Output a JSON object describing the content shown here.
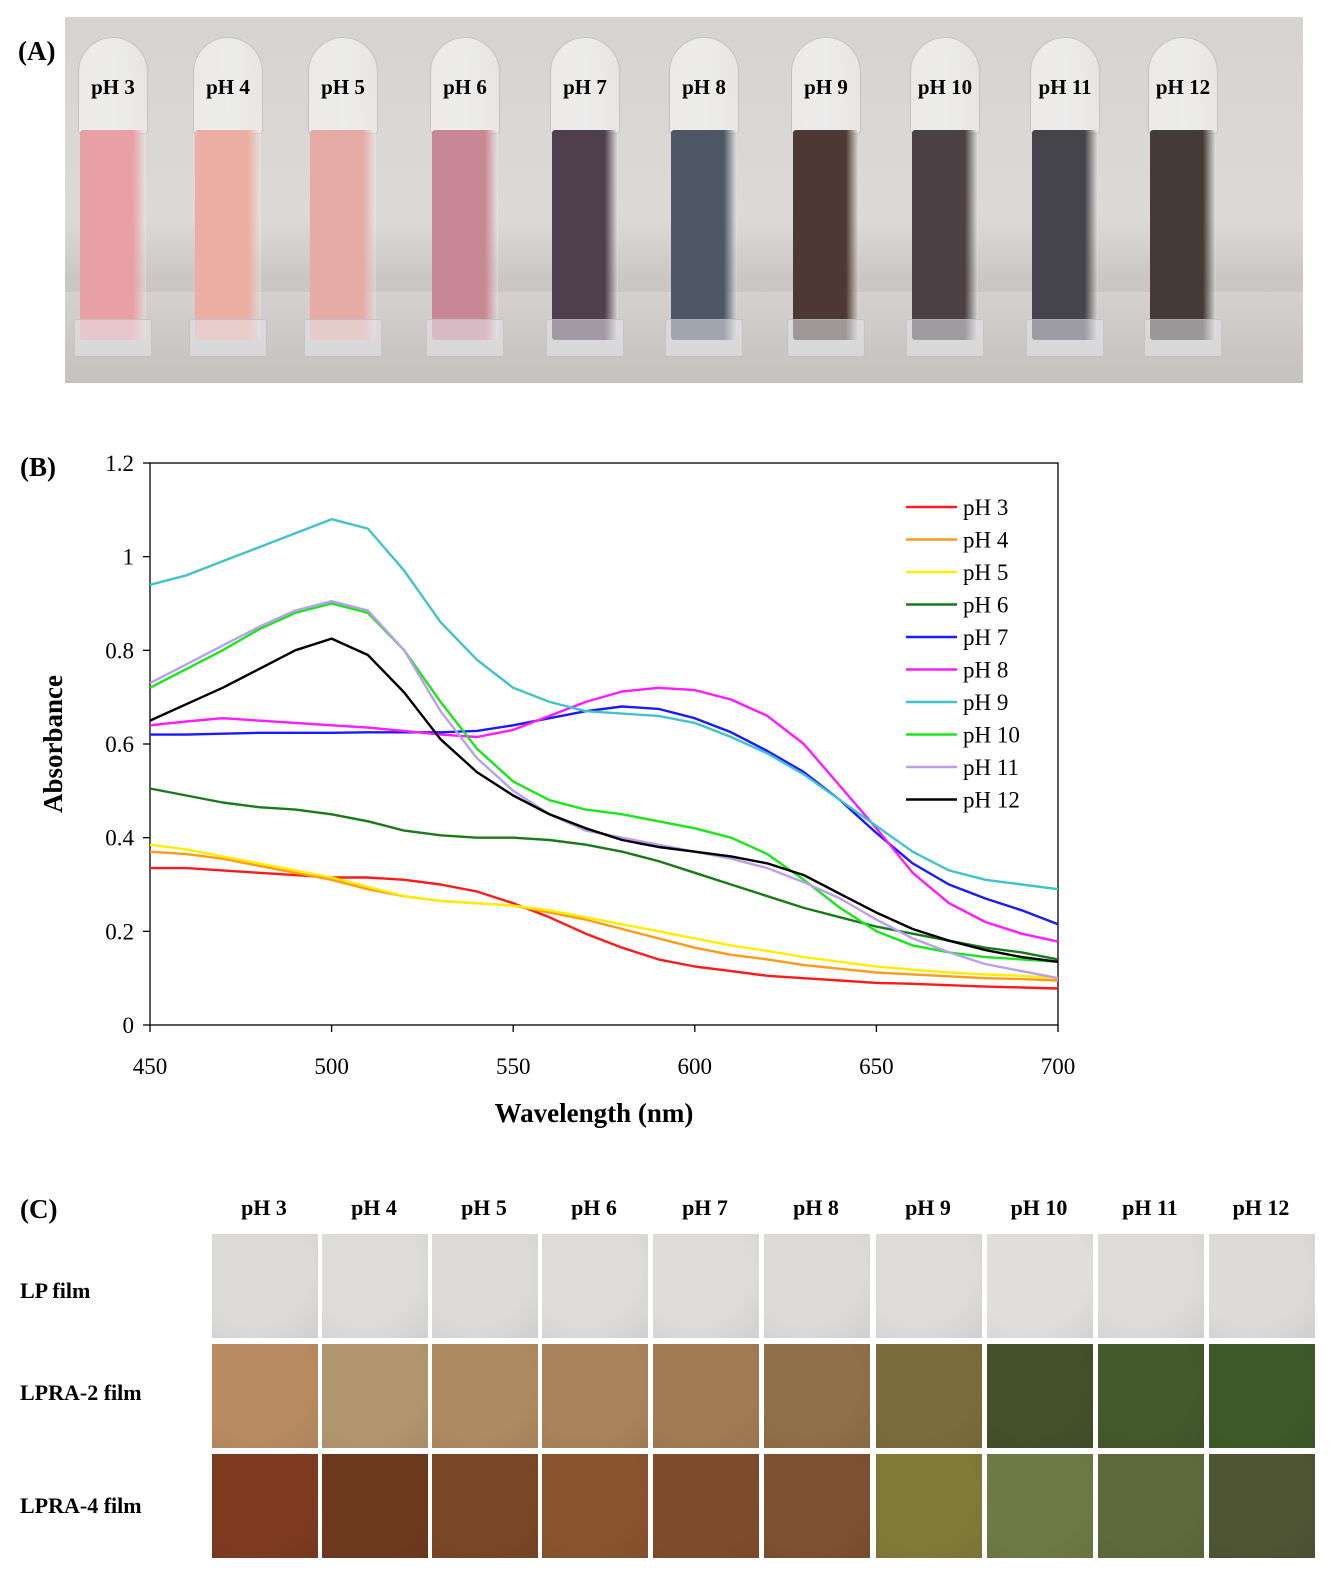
{
  "panel_labels": {
    "a": "(A)",
    "b": "(B)",
    "c": "(C)"
  },
  "vials": [
    {
      "label": "pH 3",
      "color": "#e8a0a6"
    },
    {
      "label": "pH 4",
      "color": "#ebaea3"
    },
    {
      "label": "pH 5",
      "color": "#e7aba5"
    },
    {
      "label": "pH 6",
      "color": "#c88795"
    },
    {
      "label": "pH 7",
      "color": "#4f3f4d"
    },
    {
      "label": "pH 8",
      "color": "#4d5864"
    },
    {
      "label": "pH 9",
      "color": "#4d3833"
    },
    {
      "label": "pH 10",
      "color": "#4b4043"
    },
    {
      "label": "pH 11",
      "color": "#45444a"
    },
    {
      "label": "pH 12",
      "color": "#443a38"
    }
  ],
  "chart_data": {
    "type": "line",
    "title": "",
    "xlabel": "Wavelength (nm)",
    "ylabel": "Absorbance",
    "xlim": [
      450,
      700
    ],
    "ylim": [
      0,
      1.2
    ],
    "xticks": [
      "450",
      "500",
      "550",
      "600",
      "650",
      "700"
    ],
    "yticks": [
      "0",
      "0.2",
      "0.4",
      "0.6",
      "0.8",
      "1",
      "1.2"
    ],
    "legend_position": "top-right",
    "x": [
      450,
      460,
      470,
      480,
      490,
      500,
      510,
      520,
      530,
      540,
      550,
      560,
      570,
      580,
      590,
      600,
      610,
      620,
      630,
      640,
      650,
      660,
      670,
      680,
      690,
      700
    ],
    "series": [
      {
        "name": "pH 3",
        "color": "#ff1a1a",
        "values": [
          0.335,
          0.335,
          0.33,
          0.325,
          0.32,
          0.315,
          0.315,
          0.31,
          0.3,
          0.285,
          0.26,
          0.23,
          0.195,
          0.165,
          0.14,
          0.125,
          0.115,
          0.105,
          0.1,
          0.095,
          0.09,
          0.088,
          0.085,
          0.082,
          0.08,
          0.078
        ]
      },
      {
        "name": "pH 4",
        "color": "#ff9a1a",
        "values": [
          0.37,
          0.365,
          0.355,
          0.34,
          0.325,
          0.31,
          0.29,
          0.275,
          0.265,
          0.26,
          0.255,
          0.24,
          0.225,
          0.205,
          0.185,
          0.165,
          0.15,
          0.14,
          0.128,
          0.12,
          0.112,
          0.108,
          0.104,
          0.1,
          0.098,
          0.095
        ]
      },
      {
        "name": "pH 5",
        "color": "#ffee00",
        "values": [
          0.385,
          0.375,
          0.36,
          0.345,
          0.33,
          0.315,
          0.295,
          0.275,
          0.265,
          0.26,
          0.255,
          0.245,
          0.23,
          0.215,
          0.2,
          0.185,
          0.17,
          0.158,
          0.145,
          0.135,
          0.125,
          0.118,
          0.112,
          0.108,
          0.105,
          0.1
        ]
      },
      {
        "name": "pH 6",
        "color": "#1a7a1a",
        "values": [
          0.505,
          0.49,
          0.475,
          0.465,
          0.46,
          0.45,
          0.435,
          0.415,
          0.405,
          0.4,
          0.4,
          0.395,
          0.385,
          0.37,
          0.35,
          0.325,
          0.3,
          0.275,
          0.25,
          0.23,
          0.21,
          0.195,
          0.18,
          0.165,
          0.155,
          0.14
        ]
      },
      {
        "name": "pH 7",
        "color": "#1a1aff",
        "values": [
          0.62,
          0.62,
          0.622,
          0.624,
          0.624,
          0.624,
          0.625,
          0.625,
          0.625,
          0.628,
          0.64,
          0.655,
          0.67,
          0.68,
          0.675,
          0.655,
          0.625,
          0.585,
          0.54,
          0.48,
          0.41,
          0.345,
          0.3,
          0.27,
          0.245,
          0.215
        ]
      },
      {
        "name": "pH 8",
        "color": "#ff1aff",
        "values": [
          0.64,
          0.648,
          0.655,
          0.65,
          0.645,
          0.64,
          0.635,
          0.628,
          0.62,
          0.615,
          0.63,
          0.66,
          0.69,
          0.712,
          0.72,
          0.715,
          0.695,
          0.66,
          0.6,
          0.51,
          0.42,
          0.325,
          0.26,
          0.22,
          0.195,
          0.178
        ]
      },
      {
        "name": "pH 9",
        "color": "#3fc4cc",
        "values": [
          0.94,
          0.96,
          0.99,
          1.02,
          1.05,
          1.08,
          1.06,
          0.97,
          0.86,
          0.78,
          0.72,
          0.69,
          0.67,
          0.665,
          0.66,
          0.645,
          0.615,
          0.58,
          0.535,
          0.48,
          0.425,
          0.37,
          0.33,
          0.31,
          0.3,
          0.29
        ]
      },
      {
        "name": "pH 10",
        "color": "#1ae61a",
        "values": [
          0.72,
          0.76,
          0.8,
          0.845,
          0.88,
          0.9,
          0.88,
          0.8,
          0.69,
          0.59,
          0.52,
          0.48,
          0.46,
          0.45,
          0.435,
          0.42,
          0.4,
          0.365,
          0.31,
          0.25,
          0.2,
          0.17,
          0.155,
          0.145,
          0.14,
          0.135
        ]
      },
      {
        "name": "pH 11",
        "color": "#bb9eee",
        "values": [
          0.73,
          0.77,
          0.81,
          0.85,
          0.885,
          0.905,
          0.885,
          0.8,
          0.67,
          0.57,
          0.5,
          0.45,
          0.415,
          0.4,
          0.385,
          0.37,
          0.355,
          0.335,
          0.305,
          0.27,
          0.225,
          0.185,
          0.155,
          0.13,
          0.115,
          0.1
        ]
      },
      {
        "name": "pH 12",
        "color": "#000000",
        "values": [
          0.65,
          0.685,
          0.72,
          0.76,
          0.8,
          0.825,
          0.79,
          0.71,
          0.61,
          0.54,
          0.49,
          0.45,
          0.42,
          0.395,
          0.38,
          0.37,
          0.36,
          0.345,
          0.32,
          0.28,
          0.24,
          0.205,
          0.18,
          0.16,
          0.145,
          0.135
        ]
      }
    ]
  },
  "film_columns": [
    "pH 3",
    "pH 4",
    "pH 5",
    "pH 6",
    "pH 7",
    "pH 8",
    "pH 9",
    "pH 10",
    "pH 11",
    "pH 12"
  ],
  "film_rows": [
    {
      "label": "LP film",
      "colors": [
        "#dcdbd9",
        "#dddcda",
        "#dcdbd9",
        "#dddcda",
        "#dddcda",
        "#dcdbd9",
        "#dddcda",
        "#e0dfdd",
        "#dddcda",
        "#dcdbd9"
      ]
    },
    {
      "label": "LPRA-2 film",
      "colors": [
        "#b88b62",
        "#b2966f",
        "#ae8a61",
        "#a9835b",
        "#a27b52",
        "#8f6f47",
        "#7b6c3c",
        "#43502a",
        "#43592b",
        "#3d5a28"
      ]
    },
    {
      "label": "LPRA-4 film",
      "colors": [
        "#7e3b20",
        "#6e3a1f",
        "#7a4726",
        "#89542d",
        "#7f4d2b",
        "#7d5131",
        "#817a37",
        "#6e7a45",
        "#5e6a3b",
        "#4e5434"
      ]
    }
  ]
}
